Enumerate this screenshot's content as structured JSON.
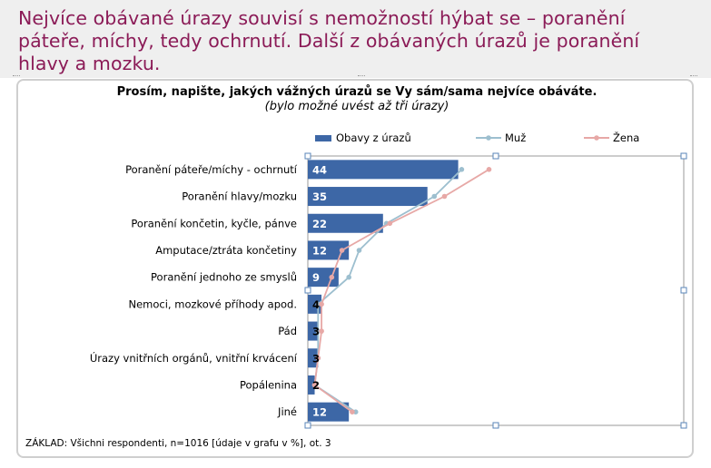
{
  "slide": {
    "heading": "Nejvíce obávané úrazy souvisí s nemožností hýbat se – poranění páteře, míchy, tedy ochrnutí. Další z obávaných úrazů je poranění hlavy a mozku."
  },
  "chart_data": {
    "type": "bar",
    "orientation": "horizontal",
    "title": "Prosím, napište, jakých vážných úrazů se Vy sám/sama nejvíce obáváte.",
    "subtitle": "(bylo možné uvést až tři úrazy)",
    "categories": [
      "Poranění páteře/míchy - ochrnutí",
      "Poranění hlavy/mozku",
      "Poranění končetin, kyčle, pánve",
      "Amputace/ztráta končetiny",
      "Poranění jednoho ze smyslů",
      "Nemoci,  mozkové příhody apod.",
      "Pád",
      "Úrazy vnitřních orgánů, vnitřní krvácení",
      "Popálenina",
      "Jiné"
    ],
    "series": [
      {
        "name": "Obavy z úrazů",
        "kind": "bar",
        "color": "#3d67a6",
        "values": [
          44,
          35,
          22,
          12,
          9,
          4,
          3,
          3,
          2,
          12
        ],
        "labels": [
          "44",
          "35",
          "22",
          "12",
          "9",
          "4",
          "3",
          "3",
          "2",
          "12"
        ]
      },
      {
        "name": "Muž",
        "kind": "line",
        "color": "#9dbfcf",
        "values": [
          45,
          37,
          23,
          15,
          12,
          3,
          3,
          3,
          2,
          14
        ]
      },
      {
        "name": "Žena",
        "kind": "line",
        "color": "#e7a8a6",
        "values": [
          53,
          40,
          24,
          10,
          7,
          4,
          4,
          3,
          2,
          13
        ]
      }
    ],
    "xlim": [
      0,
      110
    ],
    "legend": "top",
    "grid": false,
    "footnote": "ZÁKLAD: Všichni respondenti, n=1016 [údaje v grafu v %], ot. 3"
  }
}
